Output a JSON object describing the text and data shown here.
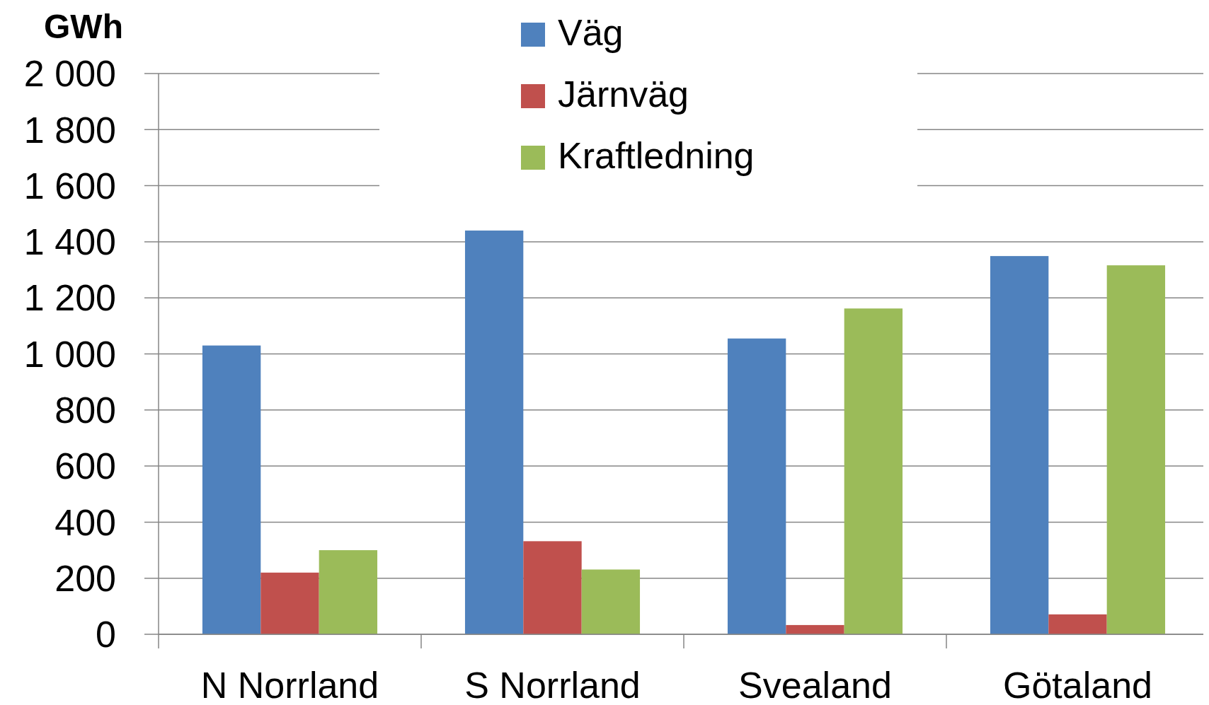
{
  "chart_data": {
    "type": "bar",
    "ylabel": "GWh",
    "categories": [
      "N Norrland",
      "S Norrland",
      "Svealand",
      "Götaland"
    ],
    "series": [
      {
        "name": "Väg",
        "color": "#4f81bd",
        "values": [
          1030,
          1440,
          1055,
          1349
        ]
      },
      {
        "name": "Järnväg",
        "color": "#c0504d",
        "values": [
          220,
          332,
          33,
          71
        ]
      },
      {
        "name": "Kraftledning",
        "color": "#9bbb59",
        "values": [
          300,
          231,
          1162,
          1316
        ]
      }
    ],
    "ylim": [
      0,
      2000
    ],
    "yticks": [
      0,
      200,
      400,
      600,
      800,
      {
        "value": 1000,
        "label": "1 000"
      },
      {
        "value": 1200,
        "label": "1 200"
      },
      {
        "value": 1400,
        "label": "1 400"
      },
      {
        "value": 1600,
        "label": "1 600"
      },
      {
        "value": 1800,
        "label": "1 800"
      },
      {
        "value": 2000,
        "label": "2 000"
      }
    ],
    "grid": "y",
    "legend": "top"
  }
}
